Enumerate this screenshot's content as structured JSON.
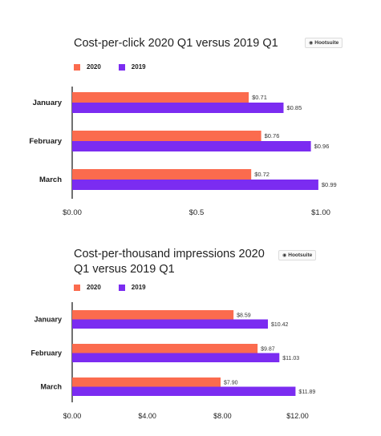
{
  "colors": {
    "2020": "#fb6b4e",
    "2019": "#7b2cf1"
  },
  "chart_data": [
    {
      "type": "bar",
      "orientation": "horizontal",
      "title": "Cost-per-click 2020 Q1 versus 2019 Q1",
      "logo_text": "Hootsuite",
      "categories": [
        "January",
        "February",
        "March"
      ],
      "series": [
        {
          "name": "2020",
          "values": [
            0.71,
            0.76,
            0.72
          ],
          "labels": [
            "$0.71",
            "$0.76",
            "$0.72"
          ]
        },
        {
          "name": "2019",
          "values": [
            0.85,
            0.96,
            0.99
          ],
          "labels": [
            "$0.85",
            "$0.96",
            "$0.99"
          ]
        }
      ],
      "xlim": [
        0,
        1.0
      ],
      "xticks": [
        0,
        0.5,
        1.0
      ],
      "xtick_labels": [
        "$0.00",
        "$0.5",
        "$1.00"
      ],
      "legend_position": "top-left",
      "grid": false
    },
    {
      "type": "bar",
      "orientation": "horizontal",
      "title": "Cost-per-thousand impressions 2020 Q1 versus 2019 Q1",
      "logo_text": "Hootsuite",
      "categories": [
        "January",
        "February",
        "March"
      ],
      "series": [
        {
          "name": "2020",
          "values": [
            8.59,
            9.87,
            7.9
          ],
          "labels": [
            "$8.59",
            "$9.87",
            "$7.90"
          ]
        },
        {
          "name": "2019",
          "values": [
            10.42,
            11.03,
            11.89
          ],
          "labels": [
            "$10.42",
            "$11.03",
            "$11.89"
          ]
        }
      ],
      "xlim": [
        0,
        12
      ],
      "xticks": [
        0,
        4,
        8,
        12
      ],
      "xtick_labels": [
        "$0.00",
        "$4.00",
        "$8.00",
        "$12.00"
      ],
      "legend_position": "top-left",
      "grid": false
    }
  ]
}
